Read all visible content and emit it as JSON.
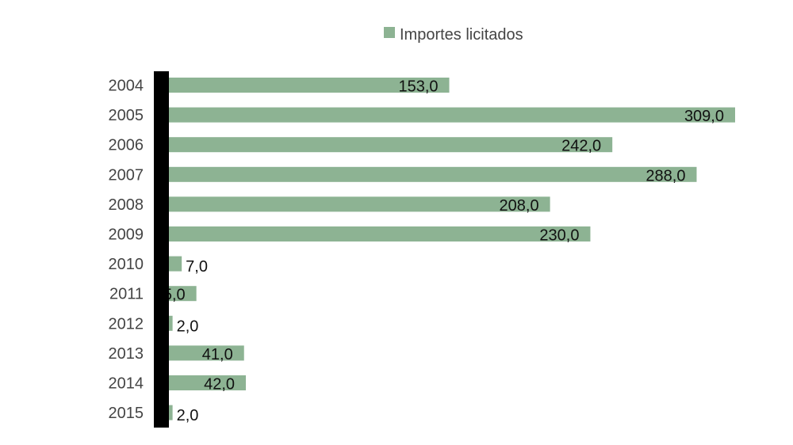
{
  "chart_data": {
    "type": "bar",
    "orientation": "horizontal",
    "title": "",
    "xlabel": "",
    "ylabel": "",
    "legend": {
      "position": "top",
      "entries": [
        "Importes licitados"
      ]
    },
    "grid": false,
    "categories": [
      "2004",
      "2005",
      "2006",
      "2007",
      "2008",
      "2009",
      "2010",
      "2011",
      "2012",
      "2013",
      "2014",
      "2015"
    ],
    "series": [
      {
        "name": "Importes licitados",
        "color": "#8db393",
        "values": [
          153.0,
          309.0,
          242.0,
          288.0,
          208.0,
          230.0,
          7.0,
          15.0,
          2.0,
          41.0,
          42.0,
          2.0
        ],
        "labels": [
          "153,0",
          "309,0",
          "242,0",
          "288,0",
          "208,0",
          "230,0",
          "7,0",
          "15,0",
          "2,0",
          "41,0",
          "42,0",
          "2,0"
        ]
      }
    ],
    "xlim": [
      0,
      309
    ],
    "axis_color": "#000000"
  }
}
